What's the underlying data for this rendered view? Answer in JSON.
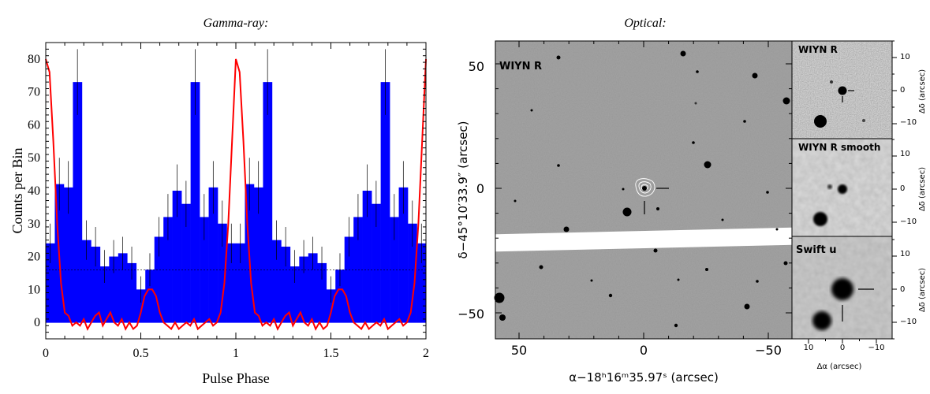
{
  "gamma": {
    "title": "Gamma-ray:",
    "xlabel": "Pulse Phase",
    "ylabel": "Counts per Bin",
    "xticks": [
      "0",
      "0.5",
      "1",
      "1.5",
      "2"
    ],
    "yticks": [
      "0",
      "10",
      "20",
      "30",
      "40",
      "50",
      "60",
      "70",
      "80"
    ]
  },
  "optical": {
    "title": "Optical:",
    "main_label": "WIYN R",
    "xlabel": "α−18ʰ16ᵐ35.97ˢ (arcsec)",
    "ylabel": "δ−45°10′33.9″ (arcsec)",
    "xticks": [
      "50",
      "0",
      "−50"
    ],
    "yticks": [
      "50",
      "0",
      "−50"
    ],
    "insets": [
      {
        "label": "WIYN R"
      },
      {
        "label": "WIYN R smooth"
      },
      {
        "label": "Swift u"
      }
    ],
    "inset_yticks": [
      "10",
      "0",
      "−10"
    ],
    "inset_ylabel": "Δδ (arcsec)",
    "inset_xticks": [
      "10",
      "0",
      "−10"
    ],
    "inset_xlabel": "Δα (arcsec)"
  },
  "chart_data": [
    {
      "type": "bar",
      "title": "Gamma-ray:",
      "xlabel": "Pulse Phase",
      "ylabel": "Counts per Bin",
      "xlim": [
        0,
        2
      ],
      "ylim": [
        -5,
        85
      ],
      "background_level": 16,
      "series": [
        {
          "values": [
            24,
            42,
            41,
            73,
            25,
            23,
            17,
            20,
            21,
            18,
            10,
            16,
            26,
            32,
            40,
            36,
            73,
            32,
            41,
            30,
            24,
            24,
            42,
            41,
            73,
            25,
            23,
            17,
            20,
            21,
            18,
            10,
            16,
            26,
            32,
            40,
            36,
            73,
            32,
            41,
            30,
            24
          ],
          "errors": [
            6,
            8,
            8,
            10,
            6,
            6,
            5,
            5,
            5,
            5,
            4,
            5,
            6,
            7,
            8,
            7,
            10,
            7,
            8,
            7,
            6,
            6,
            8,
            8,
            10,
            6,
            6,
            5,
            5,
            5,
            5,
            4,
            5,
            6,
            7,
            8,
            7,
            10,
            7,
            8,
            7,
            6
          ]
        },
        {
          "x": [
            0,
            0.02,
            0.04,
            0.06,
            0.08,
            0.1,
            0.12,
            0.14,
            0.16,
            0.18,
            0.2,
            0.22,
            0.24,
            0.26,
            0.28,
            0.3,
            0.32,
            0.34,
            0.36,
            0.38,
            0.4,
            0.42,
            0.44,
            0.46,
            0.48,
            0.5,
            0.52,
            0.54,
            0.56,
            0.58,
            0.6,
            0.62,
            0.64,
            0.66,
            0.68,
            0.7,
            0.72,
            0.74,
            0.76,
            0.78,
            0.8,
            0.82,
            0.84,
            0.86,
            0.88,
            0.9,
            0.92,
            0.94,
            0.96,
            0.98,
            1,
            1.02,
            1.04,
            1.06,
            1.08,
            1.1,
            1.12,
            1.14,
            1.16,
            1.18,
            1.2,
            1.22,
            1.24,
            1.26,
            1.28,
            1.3,
            1.32,
            1.34,
            1.36,
            1.38,
            1.4,
            1.42,
            1.44,
            1.46,
            1.48,
            1.5,
            1.52,
            1.54,
            1.56,
            1.58,
            1.6,
            1.62,
            1.64,
            1.66,
            1.68,
            1.7,
            1.72,
            1.74,
            1.76,
            1.78,
            1.8,
            1.82,
            1.84,
            1.86,
            1.88,
            1.9,
            1.92,
            1.94,
            1.96,
            1.98,
            2
          ],
          "values": [
            80,
            76,
            55,
            30,
            12,
            3,
            2,
            -1,
            0,
            -1,
            1,
            -2,
            0,
            2,
            3,
            -1,
            1,
            3,
            0,
            -1,
            1,
            -2,
            0,
            -2,
            -1,
            3,
            8,
            10,
            10,
            8,
            3,
            0,
            -1,
            -2,
            0,
            -2,
            -1,
            0,
            -1,
            1,
            -2,
            -1,
            0,
            1,
            -1,
            0,
            3,
            12,
            30,
            55,
            80,
            76,
            55,
            30,
            12,
            3,
            2,
            -1,
            0,
            -1,
            1,
            -2,
            0,
            2,
            3,
            -1,
            1,
            3,
            0,
            -1,
            1,
            -2,
            0,
            -2,
            -1,
            3,
            8,
            10,
            10,
            8,
            3,
            0,
            -1,
            -2,
            0,
            -2,
            -1,
            0,
            -1,
            1,
            -2,
            -1,
            0,
            1,
            -1,
            0,
            3,
            12,
            30,
            55,
            80
          ]
        }
      ],
      "colors": {
        "bars": "#0000ff",
        "curve": "#ff0000",
        "errorbars": "#000000"
      }
    }
  ]
}
